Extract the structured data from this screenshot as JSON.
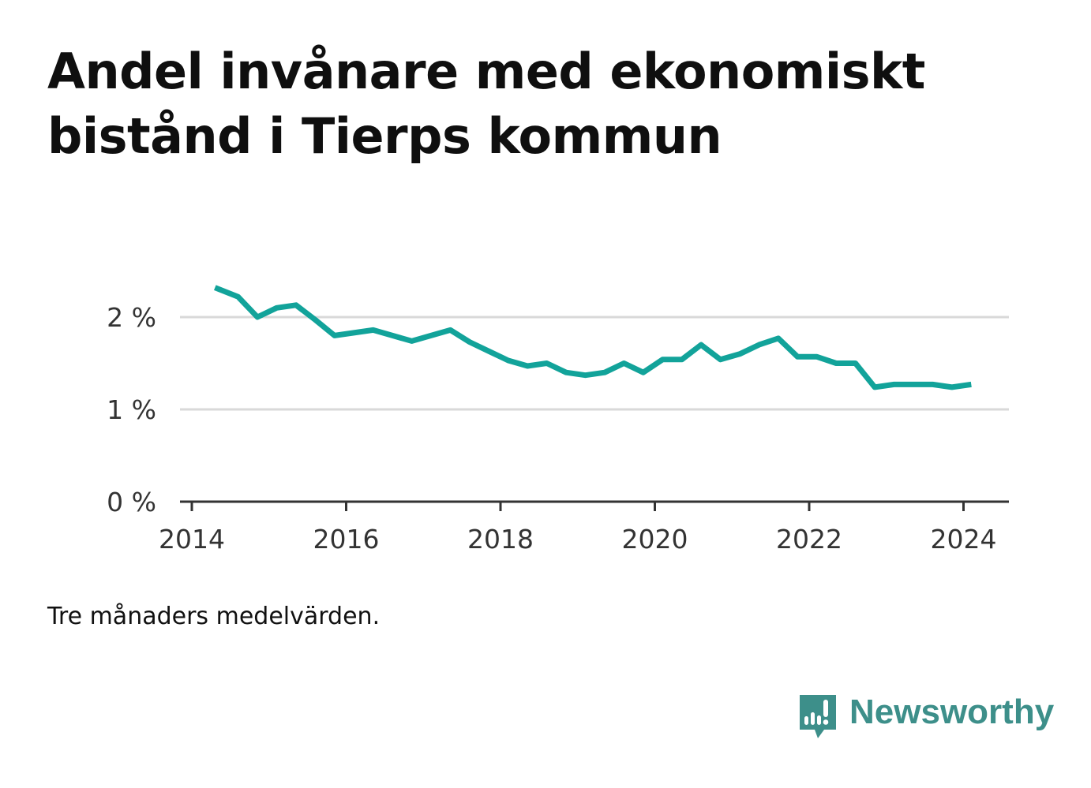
{
  "title": "Andel invånare med ekonomiskt bistånd i Tierps kommun",
  "footnote": "Tre månaders medelvärden.",
  "brand": {
    "name": "Newsworthy",
    "icon": "newsworthy-logo-icon",
    "color": "#3d8f8a"
  },
  "chart_data": {
    "type": "line",
    "title": "Andel invånare med ekonomiskt bistånd i Tierps kommun",
    "xlabel": "",
    "ylabel": "",
    "xlim": [
      2014,
      2024.6
    ],
    "ylim": [
      0,
      2.3
    ],
    "xticks": [
      {
        "value": 2014,
        "label": "2014"
      },
      {
        "value": 2016,
        "label": "2016"
      },
      {
        "value": 2018,
        "label": "2018"
      },
      {
        "value": 2020,
        "label": "2020"
      },
      {
        "value": 2022,
        "label": "2022"
      },
      {
        "value": 2024,
        "label": "2024"
      }
    ],
    "yticks": [
      {
        "value": 0,
        "label": "0 %"
      },
      {
        "value": 1,
        "label": "1 %"
      },
      {
        "value": 2,
        "label": "2 %"
      }
    ],
    "grid": true,
    "line_color": "#12a39a",
    "series": [
      {
        "x": [
          2014.3,
          2014.6,
          2014.85,
          2015.1,
          2015.35,
          2015.6,
          2015.85,
          2016.1,
          2016.35,
          2016.6,
          2016.85,
          2017.1,
          2017.35,
          2017.6,
          2017.85,
          2018.1,
          2018.35,
          2018.6,
          2018.85,
          2019.1,
          2019.35,
          2019.6,
          2019.85,
          2020.1,
          2020.35,
          2020.6,
          2020.85,
          2021.1,
          2021.35,
          2021.6,
          2021.85,
          2022.1,
          2022.35,
          2022.6,
          2022.85,
          2023.1,
          2023.35,
          2023.6,
          2023.85,
          2024.1
        ],
        "values": [
          2.32,
          2.22,
          2.0,
          2.1,
          2.13,
          1.97,
          1.8,
          1.83,
          1.86,
          1.8,
          1.74,
          1.8,
          1.86,
          1.73,
          1.63,
          1.53,
          1.47,
          1.5,
          1.4,
          1.37,
          1.4,
          1.5,
          1.4,
          1.54,
          1.54,
          1.7,
          1.54,
          1.6,
          1.7,
          1.77,
          1.57,
          1.57,
          1.5,
          1.5,
          1.24,
          1.27,
          1.27,
          1.27,
          1.24,
          1.27
        ]
      }
    ]
  }
}
